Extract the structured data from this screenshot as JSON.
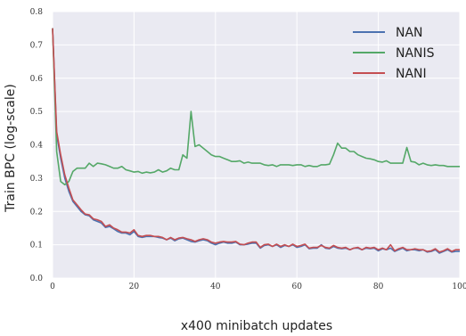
{
  "chart_data": {
    "type": "line",
    "title": "",
    "xlabel": "x400 minibatch updates",
    "ylabel": "Train BPC (log-scale)",
    "xlim": [
      0,
      100
    ],
    "ylim": [
      0.0,
      0.8
    ],
    "xticks": [
      0,
      20,
      40,
      60,
      80,
      100
    ],
    "xtick_labels": [
      "0",
      "20",
      "40",
      "60",
      "80",
      "100"
    ],
    "yticks": [
      0.0,
      0.1,
      0.2,
      0.3,
      0.4,
      0.5,
      0.6,
      0.7,
      0.8
    ],
    "ytick_labels": [
      "0.0",
      "0.1",
      "0.2",
      "0.3",
      "0.4",
      "0.5",
      "0.6",
      "0.7",
      "0.8"
    ],
    "grid": true,
    "background": "#eaeaf2",
    "legend_position": "top-right",
    "series": [
      {
        "name": "NAN",
        "color": "#4c72b0",
        "points": [
          [
            0,
            0.75
          ],
          [
            1,
            0.43
          ],
          [
            2,
            0.36
          ],
          [
            3,
            0.3
          ],
          [
            4,
            0.26
          ],
          [
            5,
            0.23
          ],
          [
            6,
            0.215
          ],
          [
            7,
            0.2
          ],
          [
            8,
            0.19
          ],
          [
            9,
            0.187
          ],
          [
            10,
            0.175
          ],
          [
            12,
            0.165
          ],
          [
            13,
            0.152
          ],
          [
            14,
            0.155
          ],
          [
            15,
            0.148
          ],
          [
            16,
            0.14
          ],
          [
            17,
            0.135
          ],
          [
            18,
            0.135
          ],
          [
            19,
            0.13
          ],
          [
            20,
            0.14
          ],
          [
            21,
            0.125
          ],
          [
            22,
            0.122
          ],
          [
            23,
            0.125
          ],
          [
            24,
            0.125
          ],
          [
            25,
            0.125
          ],
          [
            26,
            0.122
          ],
          [
            27,
            0.12
          ],
          [
            28,
            0.115
          ],
          [
            29,
            0.12
          ],
          [
            30,
            0.112
          ],
          [
            31,
            0.118
          ],
          [
            32,
            0.12
          ],
          [
            33,
            0.115
          ],
          [
            34,
            0.11
          ],
          [
            35,
            0.108
          ],
          [
            36,
            0.112
          ],
          [
            37,
            0.115
          ],
          [
            38,
            0.112
          ],
          [
            39,
            0.105
          ],
          [
            40,
            0.1
          ],
          [
            41,
            0.105
          ],
          [
            42,
            0.108
          ],
          [
            43,
            0.105
          ],
          [
            44,
            0.105
          ],
          [
            45,
            0.108
          ],
          [
            46,
            0.1
          ],
          [
            47,
            0.1
          ],
          [
            48,
            0.102
          ],
          [
            49,
            0.105
          ],
          [
            50,
            0.105
          ],
          [
            51,
            0.09
          ],
          [
            52,
            0.098
          ],
          [
            53,
            0.1
          ],
          [
            54,
            0.095
          ],
          [
            55,
            0.1
          ],
          [
            56,
            0.092
          ],
          [
            57,
            0.098
          ],
          [
            58,
            0.095
          ],
          [
            59,
            0.1
          ],
          [
            60,
            0.092
          ],
          [
            61,
            0.095
          ],
          [
            62,
            0.1
          ],
          [
            63,
            0.088
          ],
          [
            64,
            0.09
          ],
          [
            65,
            0.09
          ],
          [
            66,
            0.1
          ],
          [
            67,
            0.09
          ],
          [
            68,
            0.088
          ],
          [
            69,
            0.095
          ],
          [
            70,
            0.09
          ],
          [
            71,
            0.088
          ],
          [
            72,
            0.09
          ],
          [
            73,
            0.085
          ],
          [
            74,
            0.09
          ],
          [
            75,
            0.09
          ],
          [
            76,
            0.085
          ],
          [
            77,
            0.09
          ],
          [
            78,
            0.088
          ],
          [
            79,
            0.09
          ],
          [
            80,
            0.082
          ],
          [
            81,
            0.088
          ],
          [
            82,
            0.085
          ],
          [
            83,
            0.09
          ],
          [
            84,
            0.08
          ],
          [
            85,
            0.085
          ],
          [
            86,
            0.09
          ],
          [
            87,
            0.082
          ],
          [
            88,
            0.085
          ],
          [
            89,
            0.085
          ],
          [
            90,
            0.082
          ],
          [
            91,
            0.085
          ],
          [
            92,
            0.078
          ],
          [
            93,
            0.08
          ],
          [
            94,
            0.085
          ],
          [
            95,
            0.075
          ],
          [
            96,
            0.08
          ],
          [
            97,
            0.085
          ],
          [
            98,
            0.078
          ],
          [
            99,
            0.08
          ],
          [
            100,
            0.08
          ]
        ]
      },
      {
        "name": "NANIS",
        "color": "#55a868",
        "points": [
          [
            0,
            0.75
          ],
          [
            1,
            0.38
          ],
          [
            2,
            0.29
          ],
          [
            3,
            0.28
          ],
          [
            4,
            0.29
          ],
          [
            5,
            0.32
          ],
          [
            6,
            0.33
          ],
          [
            7,
            0.33
          ],
          [
            8,
            0.33
          ],
          [
            9,
            0.345
          ],
          [
            10,
            0.335
          ],
          [
            11,
            0.345
          ],
          [
            12,
            0.343
          ],
          [
            13,
            0.34
          ],
          [
            14,
            0.335
          ],
          [
            15,
            0.33
          ],
          [
            16,
            0.33
          ],
          [
            17,
            0.335
          ],
          [
            18,
            0.325
          ],
          [
            19,
            0.322
          ],
          [
            20,
            0.318
          ],
          [
            21,
            0.32
          ],
          [
            22,
            0.315
          ],
          [
            23,
            0.318
          ],
          [
            24,
            0.316
          ],
          [
            25,
            0.318
          ],
          [
            26,
            0.325
          ],
          [
            27,
            0.318
          ],
          [
            28,
            0.322
          ],
          [
            29,
            0.33
          ],
          [
            30,
            0.325
          ],
          [
            31,
            0.325
          ],
          [
            32,
            0.37
          ],
          [
            33,
            0.36
          ],
          [
            34,
            0.5
          ],
          [
            35,
            0.395
          ],
          [
            36,
            0.4
          ],
          [
            37,
            0.39
          ],
          [
            38,
            0.38
          ],
          [
            39,
            0.37
          ],
          [
            40,
            0.365
          ],
          [
            41,
            0.365
          ],
          [
            42,
            0.36
          ],
          [
            43,
            0.355
          ],
          [
            44,
            0.35
          ],
          [
            45,
            0.35
          ],
          [
            46,
            0.352
          ],
          [
            47,
            0.345
          ],
          [
            48,
            0.348
          ],
          [
            49,
            0.345
          ],
          [
            50,
            0.345
          ],
          [
            51,
            0.345
          ],
          [
            52,
            0.34
          ],
          [
            53,
            0.338
          ],
          [
            54,
            0.34
          ],
          [
            55,
            0.335
          ],
          [
            56,
            0.34
          ],
          [
            57,
            0.34
          ],
          [
            58,
            0.34
          ],
          [
            59,
            0.338
          ],
          [
            60,
            0.34
          ],
          [
            61,
            0.34
          ],
          [
            62,
            0.335
          ],
          [
            63,
            0.338
          ],
          [
            64,
            0.335
          ],
          [
            65,
            0.335
          ],
          [
            66,
            0.34
          ],
          [
            67,
            0.34
          ],
          [
            68,
            0.342
          ],
          [
            69,
            0.37
          ],
          [
            70,
            0.405
          ],
          [
            71,
            0.39
          ],
          [
            72,
            0.39
          ],
          [
            73,
            0.38
          ],
          [
            74,
            0.38
          ],
          [
            75,
            0.37
          ],
          [
            76,
            0.365
          ],
          [
            77,
            0.36
          ],
          [
            78,
            0.358
          ],
          [
            79,
            0.355
          ],
          [
            80,
            0.35
          ],
          [
            81,
            0.348
          ],
          [
            82,
            0.352
          ],
          [
            83,
            0.345
          ],
          [
            84,
            0.345
          ],
          [
            85,
            0.345
          ],
          [
            86,
            0.345
          ],
          [
            87,
            0.392
          ],
          [
            88,
            0.35
          ],
          [
            89,
            0.348
          ],
          [
            90,
            0.34
          ],
          [
            91,
            0.345
          ],
          [
            92,
            0.34
          ],
          [
            93,
            0.338
          ],
          [
            94,
            0.34
          ],
          [
            95,
            0.338
          ],
          [
            96,
            0.338
          ],
          [
            97,
            0.335
          ],
          [
            98,
            0.335
          ],
          [
            99,
            0.335
          ],
          [
            100,
            0.335
          ]
        ]
      },
      {
        "name": "NANI",
        "color": "#c44e52",
        "points": [
          [
            0,
            0.75
          ],
          [
            1,
            0.44
          ],
          [
            2,
            0.37
          ],
          [
            3,
            0.31
          ],
          [
            4,
            0.27
          ],
          [
            5,
            0.235
          ],
          [
            6,
            0.22
          ],
          [
            7,
            0.205
          ],
          [
            8,
            0.192
          ],
          [
            9,
            0.19
          ],
          [
            10,
            0.178
          ],
          [
            11,
            0.175
          ],
          [
            12,
            0.17
          ],
          [
            13,
            0.155
          ],
          [
            14,
            0.16
          ],
          [
            15,
            0.15
          ],
          [
            16,
            0.145
          ],
          [
            17,
            0.138
          ],
          [
            18,
            0.138
          ],
          [
            19,
            0.135
          ],
          [
            20,
            0.145
          ],
          [
            21,
            0.128
          ],
          [
            22,
            0.125
          ],
          [
            23,
            0.128
          ],
          [
            24,
            0.128
          ],
          [
            25,
            0.125
          ],
          [
            26,
            0.125
          ],
          [
            27,
            0.122
          ],
          [
            28,
            0.115
          ],
          [
            29,
            0.122
          ],
          [
            30,
            0.115
          ],
          [
            31,
            0.12
          ],
          [
            32,
            0.122
          ],
          [
            33,
            0.118
          ],
          [
            34,
            0.115
          ],
          [
            35,
            0.11
          ],
          [
            36,
            0.115
          ],
          [
            37,
            0.118
          ],
          [
            38,
            0.115
          ],
          [
            39,
            0.108
          ],
          [
            40,
            0.105
          ],
          [
            41,
            0.108
          ],
          [
            42,
            0.11
          ],
          [
            43,
            0.108
          ],
          [
            44,
            0.108
          ],
          [
            45,
            0.11
          ],
          [
            46,
            0.102
          ],
          [
            47,
            0.1
          ],
          [
            48,
            0.105
          ],
          [
            49,
            0.108
          ],
          [
            50,
            0.108
          ],
          [
            51,
            0.092
          ],
          [
            52,
            0.1
          ],
          [
            53,
            0.102
          ],
          [
            54,
            0.095
          ],
          [
            55,
            0.102
          ],
          [
            56,
            0.095
          ],
          [
            57,
            0.1
          ],
          [
            58,
            0.095
          ],
          [
            59,
            0.102
          ],
          [
            60,
            0.095
          ],
          [
            61,
            0.098
          ],
          [
            62,
            0.102
          ],
          [
            63,
            0.09
          ],
          [
            64,
            0.092
          ],
          [
            65,
            0.092
          ],
          [
            66,
            0.098
          ],
          [
            67,
            0.092
          ],
          [
            68,
            0.09
          ],
          [
            69,
            0.098
          ],
          [
            70,
            0.092
          ],
          [
            71,
            0.09
          ],
          [
            72,
            0.092
          ],
          [
            73,
            0.085
          ],
          [
            74,
            0.09
          ],
          [
            75,
            0.092
          ],
          [
            76,
            0.085
          ],
          [
            77,
            0.092
          ],
          [
            78,
            0.09
          ],
          [
            79,
            0.092
          ],
          [
            80,
            0.085
          ],
          [
            81,
            0.09
          ],
          [
            82,
            0.085
          ],
          [
            83,
            0.1
          ],
          [
            84,
            0.082
          ],
          [
            85,
            0.088
          ],
          [
            86,
            0.092
          ],
          [
            87,
            0.085
          ],
          [
            88,
            0.085
          ],
          [
            89,
            0.088
          ],
          [
            90,
            0.085
          ],
          [
            91,
            0.085
          ],
          [
            92,
            0.08
          ],
          [
            93,
            0.082
          ],
          [
            94,
            0.088
          ],
          [
            95,
            0.078
          ],
          [
            96,
            0.082
          ],
          [
            97,
            0.088
          ],
          [
            98,
            0.08
          ],
          [
            99,
            0.085
          ],
          [
            100,
            0.085
          ]
        ]
      }
    ]
  }
}
